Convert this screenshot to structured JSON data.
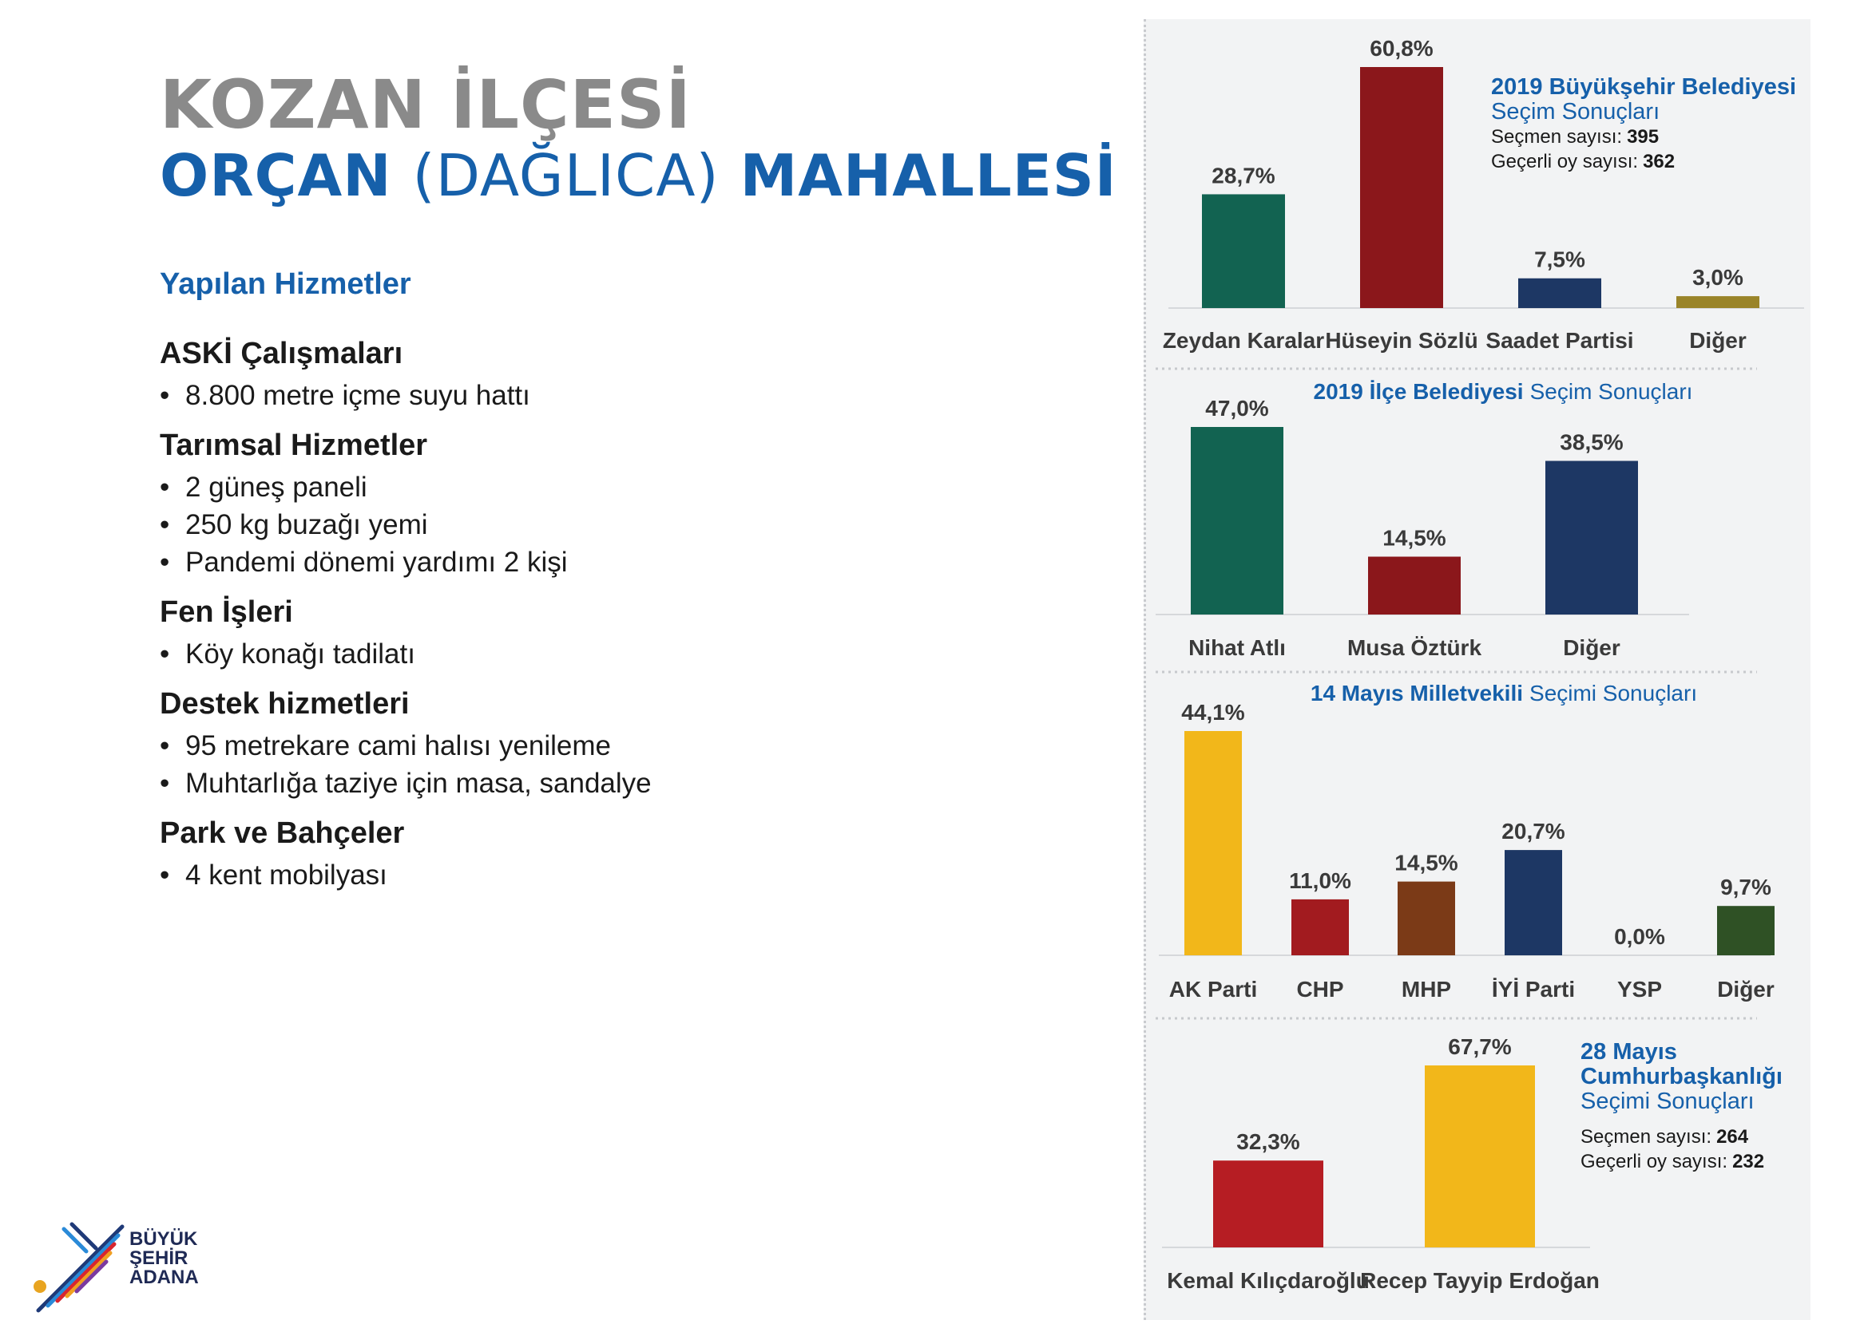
{
  "header": {
    "district": "KOZAN İLÇESİ",
    "neighborhood_a": "ORÇAN",
    "neighborhood_b": "(DAĞLICA)",
    "neighborhood_c": "MAHALLESİ"
  },
  "services": {
    "heading": "Yapılan Hizmetler",
    "groups": [
      {
        "title": "ASKİ Çalışmaları",
        "items": [
          "8.800 metre içme suyu hattı"
        ]
      },
      {
        "title": "Tarımsal Hizmetler",
        "items": [
          "2 güneş paneli",
          "250 kg buzağı yemi",
          "Pandemi dönemi yardımı 2 kişi"
        ]
      },
      {
        "title": "Fen İşleri",
        "items": [
          "Köy konağı tadilatı"
        ]
      },
      {
        "title": "Destek hizmetleri",
        "items": [
          "95 metrekare cami halısı yenileme",
          "Muhtarlığa taziye için masa, sandalye"
        ]
      },
      {
        "title": "Park ve Bahçeler",
        "items": [
          "4 kent mobilyası"
        ]
      }
    ]
  },
  "logo": {
    "line1": "BÜYÜK",
    "line2": "ŞEHİR",
    "line3": "ADANA"
  },
  "chart_data": [
    {
      "type": "bar",
      "title_bold": "2019 Büyükşehir Belediyesi",
      "title_regular": "Seçim Sonuçları",
      "voters_label": "Seçmen sayısı:",
      "voters": "395",
      "valid_label": "Geçerli oy sayısı:",
      "valid": "362",
      "categories": [
        "Zeydan Karalar",
        "Hüseyin Sözlü",
        "Saadet Partisi",
        "Diğer"
      ],
      "values": [
        28.7,
        60.8,
        7.5,
        3.0
      ],
      "labels": [
        "28,7%",
        "60,8%",
        "7,5%",
        "3,0%"
      ],
      "colors": [
        "#126351",
        "#8b171b",
        "#1d3764",
        "#9a8429"
      ]
    },
    {
      "type": "bar",
      "title_bold": "2019 İlçe Belediyesi",
      "title_regular": "Seçim Sonuçları",
      "categories": [
        "Nihat Atlı",
        "Musa Öztürk",
        "Diğer"
      ],
      "values": [
        47.0,
        14.5,
        38.5
      ],
      "labels": [
        "47,0%",
        "14,5%",
        "38,5%"
      ],
      "colors": [
        "#126351",
        "#8b171b",
        "#1d3764"
      ]
    },
    {
      "type": "bar",
      "title_bold": "14 Mayıs Milletvekili",
      "title_regular": "Seçimi Sonuçları",
      "categories": [
        "AK Parti",
        "CHP",
        "MHP",
        "İYİ Parti",
        "YSP",
        "Diğer"
      ],
      "values": [
        44.1,
        11.0,
        14.5,
        20.7,
        0.0,
        9.7
      ],
      "labels": [
        "44,1%",
        "11,0%",
        "14,5%",
        "20,7%",
        "0,0%",
        "9,7%"
      ],
      "colors": [
        "#f2b71a",
        "#a21b1f",
        "#7b3a17",
        "#1d3764",
        "#888888",
        "#2f5125"
      ]
    },
    {
      "type": "bar",
      "title_line1": "28 Mayıs",
      "title_line2": "Cumhurbaşkanlığı",
      "title_regular": "Seçimi Sonuçları",
      "voters_label": "Seçmen sayısı:",
      "voters": "264",
      "valid_label": "Geçerli oy sayısı:",
      "valid": "232",
      "categories": [
        "Kemal Kılıçdaroğlu",
        "Recep Tayyip Erdoğan"
      ],
      "values": [
        32.3,
        67.7
      ],
      "labels": [
        "32,3%",
        "67,7%"
      ],
      "colors": [
        "#b61d23",
        "#f2b71a"
      ]
    }
  ]
}
